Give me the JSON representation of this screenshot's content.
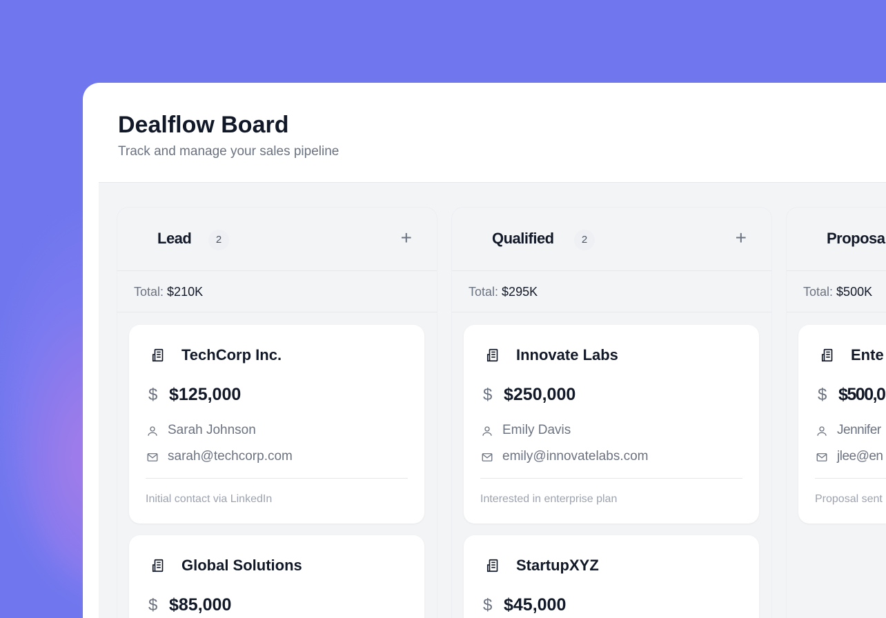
{
  "header": {
    "title": "Dealflow Board",
    "subtitle": "Track and manage your sales pipeline"
  },
  "columns": [
    {
      "name": "Lead",
      "count": "2",
      "total_label": "Total:",
      "total": "$210K",
      "cards": [
        {
          "company": "TechCorp Inc.",
          "amount": "$125,000",
          "contact": "Sarah Johnson",
          "email": "sarah@techcorp.com",
          "note": "Initial contact via LinkedIn"
        },
        {
          "company": "Global Solutions",
          "amount": "$85,000"
        }
      ]
    },
    {
      "name": "Qualified",
      "count": "2",
      "total_label": "Total:",
      "total": "$295K",
      "cards": [
        {
          "company": "Innovate Labs",
          "amount": "$250,000",
          "contact": "Emily Davis",
          "email": "emily@innovatelabs.com",
          "note": "Interested in enterprise plan"
        },
        {
          "company": "StartupXYZ",
          "amount": "$45,000"
        }
      ]
    },
    {
      "name": "Proposa",
      "total_label": "Total:",
      "total": "$500K",
      "cards": [
        {
          "company": "Ente",
          "amount": "$500,0",
          "contact": "Jennifer",
          "email": "jlee@en",
          "note": "Proposal sent"
        }
      ]
    }
  ],
  "icons": {
    "company": "building-icon",
    "amount": "dollar-icon",
    "contact": "user-icon",
    "email": "mail-icon",
    "add": "plus-icon"
  },
  "colors": {
    "background": "#7077ee",
    "text": "#111827",
    "muted": "#6b7280"
  }
}
